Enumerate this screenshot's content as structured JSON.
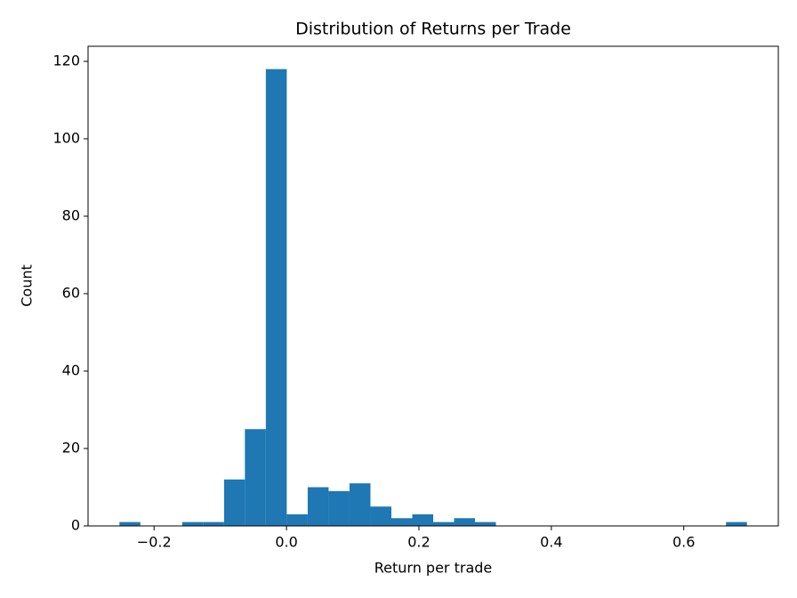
{
  "chart_data": {
    "type": "histogram",
    "title": "Distribution of Returns per Trade",
    "x_label": "Return per trade",
    "y_label": "Count",
    "color": "#1f77b4",
    "bins": [
      -0.2523,
      -0.2207,
      -0.1891,
      -0.1575,
      -0.1259,
      -0.0943,
      -0.0628,
      -0.0312,
      0.0004,
      0.032,
      0.0636,
      0.0952,
      0.1268,
      0.1584,
      0.19,
      0.2216,
      0.2531,
      0.2847,
      0.3163,
      0.3479,
      0.3795,
      0.4111,
      0.4427,
      0.4743,
      0.5059,
      0.5375,
      0.569,
      0.6006,
      0.6322,
      0.6638,
      0.6954
    ],
    "values": [
      1,
      0,
      0,
      1,
      1,
      12,
      25,
      118,
      3,
      10,
      9,
      11,
      5,
      2,
      3,
      1,
      2,
      1,
      0,
      0,
      0,
      0,
      0,
      0,
      0,
      0,
      0,
      0,
      0,
      1
    ],
    "xlim": [
      -0.2997,
      0.7428
    ],
    "ylim": [
      0,
      123.9
    ],
    "xticks": [
      {
        "value": -0.2,
        "label": "−0.2"
      },
      {
        "value": 0,
        "label": "0.0"
      },
      0.2,
      0.4,
      0.6
    ],
    "yticks": [
      0,
      20,
      40,
      60,
      80,
      100,
      120
    ]
  }
}
